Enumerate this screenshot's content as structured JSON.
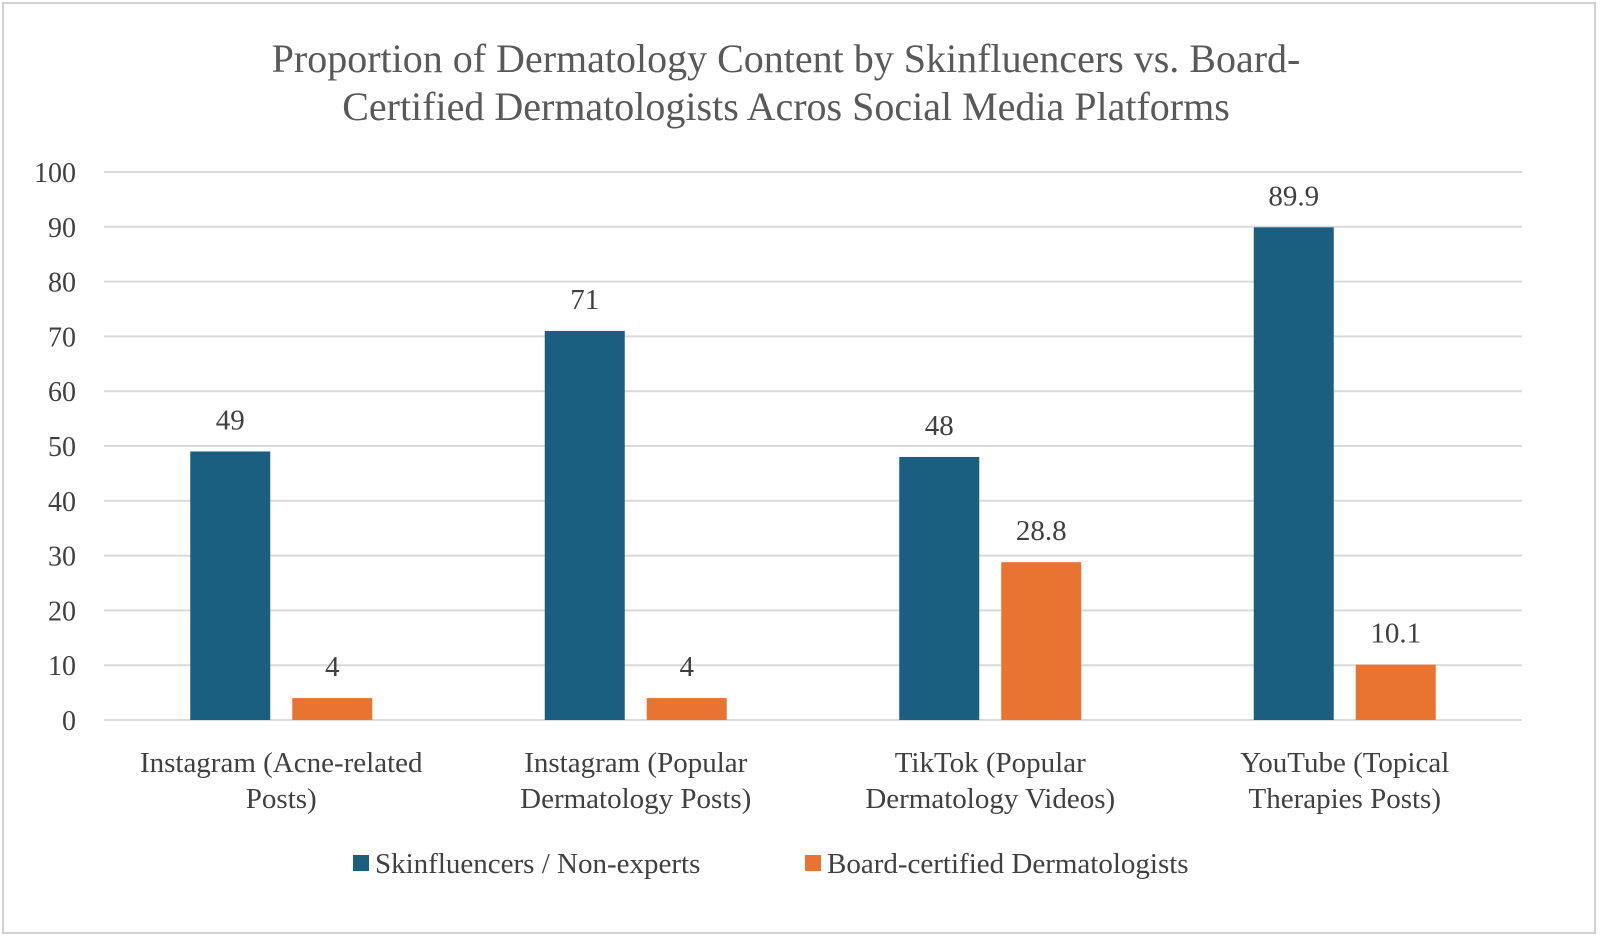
{
  "chart_data": {
    "type": "bar",
    "title_lines": [
      "Proportion of Dermatology Content by Skinfluencers vs. Board-",
      "Certified Dermatologists Acros Social Media Platforms"
    ],
    "categories": [
      [
        "Instagram (Acne-related",
        "Posts)"
      ],
      [
        "Instagram (Popular",
        "Dermatology Posts)"
      ],
      [
        "TikTok (Popular",
        "Dermatology Videos)"
      ],
      [
        "YouTube (Topical",
        "Therapies Posts)"
      ]
    ],
    "series": [
      {
        "name": "Skinfluencers / Non-experts",
        "color": "#1a5e80",
        "values": [
          49,
          71,
          48,
          89.9
        ],
        "labels": [
          "49",
          "71",
          "48",
          "89.9"
        ]
      },
      {
        "name": "Board-certified Dermatologists",
        "color": "#e97432",
        "values": [
          4,
          4,
          28.8,
          10.1
        ],
        "labels": [
          "4",
          "4",
          "28.8",
          "10.1"
        ]
      }
    ],
    "ylim": [
      0,
      100
    ],
    "yticks": [
      "0",
      "10",
      "20",
      "30",
      "40",
      "50",
      "60",
      "70",
      "80",
      "90",
      "100"
    ],
    "grid": true,
    "legend_position": "bottom"
  }
}
